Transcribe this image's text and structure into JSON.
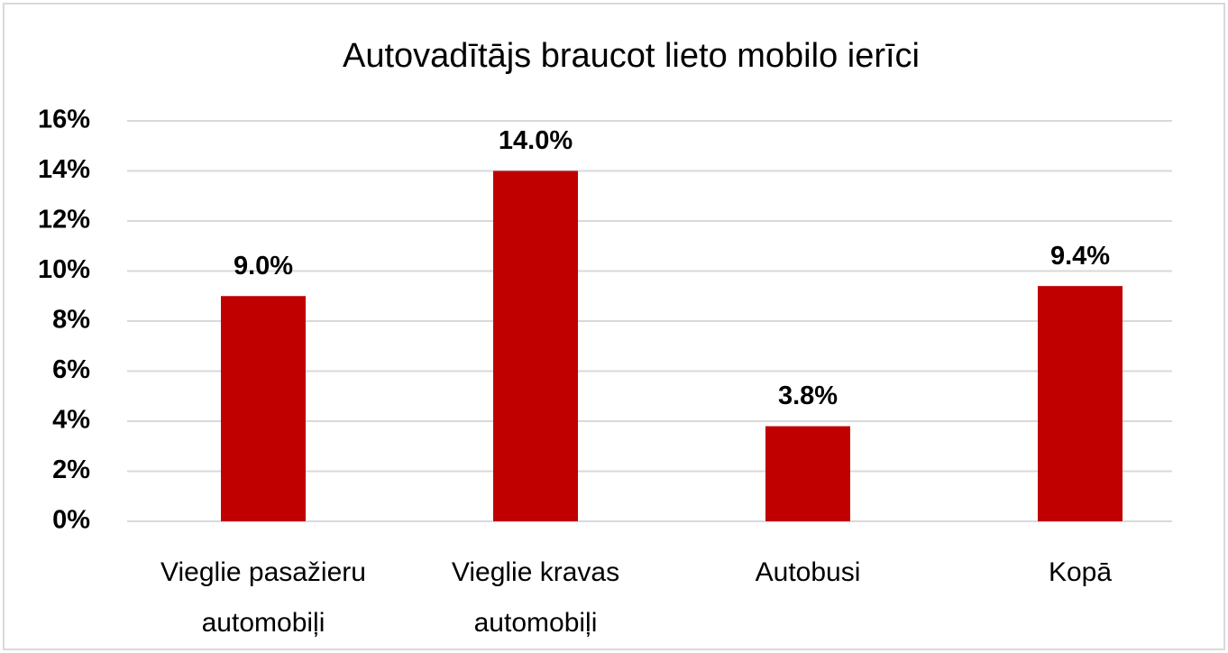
{
  "chart_data": {
    "type": "bar",
    "title": "Autovadītājs braucot lieto mobilo ierīci",
    "categories": [
      "Vieglie pasažieru automobiļi",
      "Vieglie kravas automobiļi",
      "Autobusi",
      "Kopā"
    ],
    "values": [
      9.0,
      14.0,
      3.8,
      9.4
    ],
    "value_labels": [
      "9.0%",
      "14.0%",
      "3.8%",
      "9.4%"
    ],
    "color": "#c00000",
    "ylim": [
      0,
      16
    ],
    "yticks": [
      {
        "value": 0,
        "label": "0%"
      },
      {
        "value": 2,
        "label": "2%"
      },
      {
        "value": 4,
        "label": "4%"
      },
      {
        "value": 6,
        "label": "6%"
      },
      {
        "value": 8,
        "label": "8%"
      },
      {
        "value": 10,
        "label": "10%"
      },
      {
        "value": 12,
        "label": "12%"
      },
      {
        "value": 14,
        "label": "14%"
      },
      {
        "value": 16,
        "label": "16%"
      }
    ],
    "grid": true
  }
}
